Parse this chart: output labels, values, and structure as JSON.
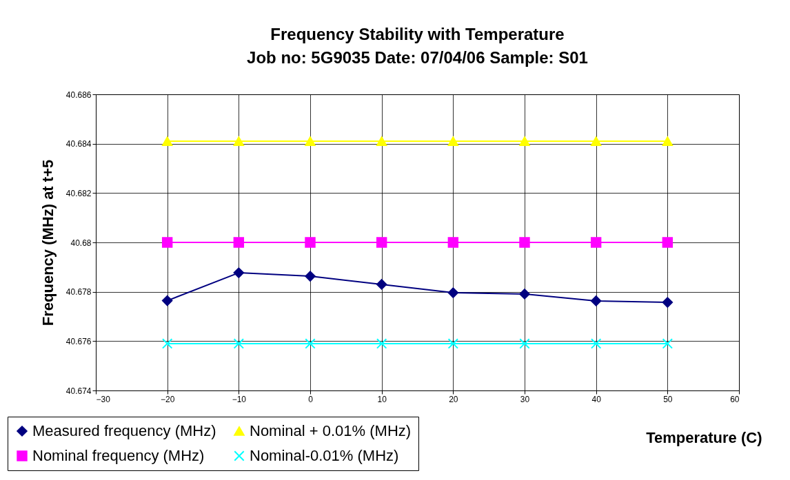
{
  "chart_data": {
    "type": "line",
    "title": "Frequency Stability with Temperature",
    "subtitle": "Job no:  5G9035  Date:  07/04/06  Sample:  S01",
    "xlabel": "Temperature (C)",
    "ylabel": "Frequency (MHz) at t+5",
    "x": [
      -20,
      -10,
      0,
      10,
      20,
      30,
      40,
      50
    ],
    "series": [
      {
        "name": "Measured frequency (MHz)",
        "color": "#000080",
        "marker": "diamond",
        "values": [
          40.67764,
          40.67877,
          40.67863,
          40.6783,
          40.67796,
          40.67791,
          40.67763,
          40.67757
        ]
      },
      {
        "name": "Nominal frequency (MHz)",
        "color": "#ff00ff",
        "marker": "square",
        "values": [
          40.68,
          40.68,
          40.68,
          40.68,
          40.68,
          40.68,
          40.68,
          40.68
        ]
      },
      {
        "name": "Nominal + 0.01% (MHz)",
        "color": "#ffff00",
        "marker": "triangle",
        "values": [
          40.6841,
          40.6841,
          40.6841,
          40.6841,
          40.6841,
          40.6841,
          40.6841,
          40.6841
        ]
      },
      {
        "name": "Nominal-0.01% (MHz)",
        "color": "#00ffff",
        "marker": "cross",
        "values": [
          40.6759,
          40.6759,
          40.6759,
          40.6759,
          40.6759,
          40.6759,
          40.6759,
          40.6759
        ]
      }
    ],
    "xlim": [
      -30,
      60
    ],
    "xticks": [
      -30,
      -20,
      -10,
      0,
      10,
      20,
      30,
      40,
      50,
      60
    ],
    "ylim": [
      40.674,
      40.686
    ],
    "yticks": [
      40.674,
      40.676,
      40.678,
      40.68,
      40.682,
      40.684,
      40.686
    ],
    "grid": true,
    "legend": "bottom left"
  }
}
